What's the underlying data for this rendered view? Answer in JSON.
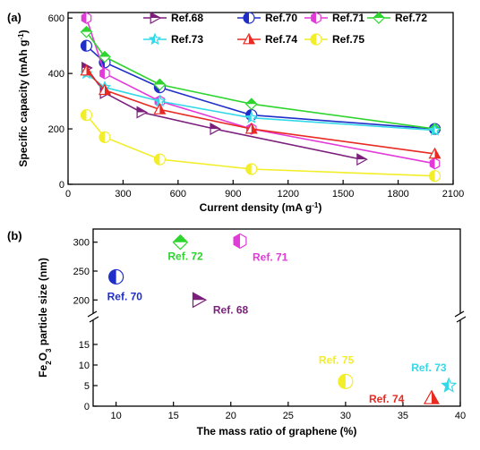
{
  "chart_data": [
    {
      "panel": "(a)",
      "type": "line",
      "xlabel": "Current density (mA g",
      "xlabel_sup": "-1",
      "xlabel_end": ")",
      "ylabel": "Specific capacity (mAh g",
      "ylabel_sup": "-1",
      "ylabel_end": ")",
      "xlim": [
        0,
        2100
      ],
      "ylim": [
        0,
        620
      ],
      "xticks": [
        0,
        300,
        600,
        900,
        1200,
        1500,
        1800,
        2100
      ],
      "yticks": [
        0,
        200,
        400,
        600
      ],
      "legend_position": "top-right",
      "series": [
        {
          "name": "Ref.68",
          "color": "#7b1f7b",
          "marker": "triangle-right",
          "x": [
            100,
            200,
            400,
            800,
            1600
          ],
          "y": [
            420,
            330,
            260,
            200,
            90
          ]
        },
        {
          "name": "Ref.70",
          "color": "#1f2ec8",
          "marker": "circle",
          "x": [
            100,
            200,
            500,
            1000,
            2000
          ],
          "y": [
            500,
            440,
            350,
            250,
            200
          ]
        },
        {
          "name": "Ref.71",
          "color": "#e23ad9",
          "marker": "hexagon",
          "x": [
            100,
            200,
            500,
            1000,
            2000
          ],
          "y": [
            600,
            400,
            300,
            200,
            75
          ]
        },
        {
          "name": "Ref.72",
          "color": "#2ed52e",
          "marker": "diamond",
          "x": [
            100,
            200,
            500,
            1000,
            2000
          ],
          "y": [
            550,
            460,
            360,
            290,
            200
          ]
        },
        {
          "name": "Ref.73",
          "color": "#33d9e8",
          "marker": "star",
          "x": [
            100,
            200,
            500,
            1000,
            2000
          ],
          "y": [
            400,
            350,
            300,
            240,
            195
          ]
        },
        {
          "name": "Ref.74",
          "color": "#e82a22",
          "marker": "triangle-up",
          "x": [
            100,
            200,
            500,
            1000,
            2000
          ],
          "y": [
            410,
            340,
            270,
            200,
            110
          ]
        },
        {
          "name": "Ref.75",
          "color": "#f2ee2a",
          "marker": "circle",
          "x": [
            100,
            200,
            500,
            1000,
            2000
          ],
          "y": [
            250,
            170,
            90,
            55,
            30
          ]
        }
      ]
    },
    {
      "panel": "(b)",
      "type": "scatter",
      "xlabel": "The mass ratio of graphene (%)",
      "ylabel_pre": "Fe",
      "ylabel_sub1": "2",
      "ylabel_mid": "O",
      "ylabel_sub2": "3",
      "ylabel_post": " particle size (nm)",
      "xlim": [
        8,
        40
      ],
      "xticks": [
        10,
        15,
        20,
        25,
        30,
        35,
        40
      ],
      "yticks_lower": [
        0,
        5,
        10,
        15
      ],
      "yticks_upper": [
        200,
        250,
        300
      ],
      "broken_y_axis": true,
      "points": [
        {
          "label": "Ref. 70",
          "color": "#1f2ec8",
          "marker": "circle",
          "x": 10,
          "y": 240
        },
        {
          "label": "Ref. 72",
          "color": "#2ed52e",
          "marker": "diamond",
          "x": 15.6,
          "y": 300
        },
        {
          "label": "Ref. 68",
          "color": "#7b1f7b",
          "marker": "triangle-right",
          "x": 17.2,
          "y": 200
        },
        {
          "label": "Ref. 71",
          "color": "#e23ad9",
          "marker": "hexagon",
          "x": 20.8,
          "y": 302
        },
        {
          "label": "Ref. 75",
          "color": "#f2ee2a",
          "marker": "circle",
          "x": 30,
          "y": 6
        },
        {
          "label": "Ref. 73",
          "color": "#33d9e8",
          "marker": "star",
          "x": 39,
          "y": 5
        },
        {
          "label": "Ref. 74",
          "color": "#e82a22",
          "marker": "triangle-up",
          "x": 37.5,
          "y": 2
        }
      ]
    }
  ]
}
